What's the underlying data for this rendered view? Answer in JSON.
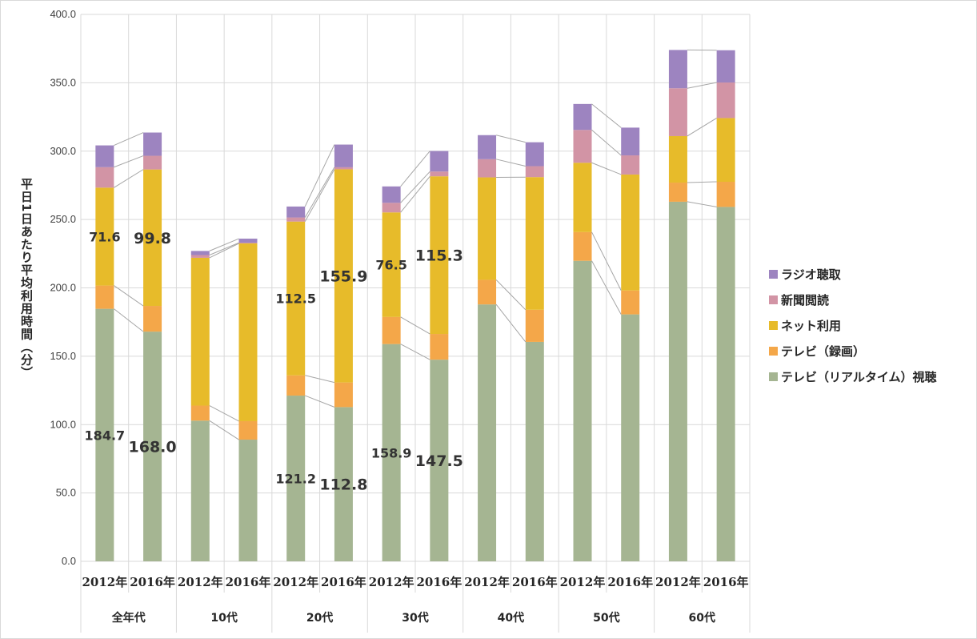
{
  "chart_data": {
    "type": "bar",
    "stacked": true,
    "ylabel": "平日1日あたり平均利用時間（分）",
    "ylim": [
      0,
      400
    ],
    "yticks": [
      "0.0",
      "50.0",
      "100.0",
      "150.0",
      "200.0",
      "250.0",
      "300.0",
      "350.0",
      "400.0"
    ],
    "groups": [
      "全年代",
      "10代",
      "20代",
      "30代",
      "40代",
      "50代",
      "60代"
    ],
    "categories": [
      "2012年",
      "2016年",
      "2012年",
      "2016年",
      "2012年",
      "2016年",
      "2012年",
      "2016年",
      "2012年",
      "2016年",
      "2012年",
      "2016年",
      "2012年",
      "2016年"
    ],
    "series": [
      {
        "name": "テレビ（リアルタイム）視聴",
        "color": "#a5b592",
        "values": [
          184.7,
          168.0,
          102.9,
          89.0,
          121.2,
          112.8,
          158.9,
          147.5,
          187.9,
          160.5,
          219.8,
          180.6,
          263.0,
          259.2
        ]
      },
      {
        "name": "テレビ（録画）",
        "color": "#f4a749",
        "values": [
          17.0,
          18.8,
          11.0,
          13.5,
          14.8,
          18.0,
          19.8,
          18.8,
          18.0,
          23.5,
          21.0,
          17.5,
          14.0,
          18.4
        ]
      },
      {
        "name": "ネット利用",
        "color": "#e7bb2a",
        "values": [
          71.6,
          99.8,
          108.1,
          130.0,
          112.5,
          155.9,
          76.5,
          115.3,
          74.9,
          97.0,
          50.7,
          84.8,
          34.0,
          46.6
        ]
      },
      {
        "name": "新聞閲読",
        "color": "#d294a5",
        "values": [
          15.0,
          10.0,
          2.0,
          0.5,
          3.0,
          1.5,
          7.0,
          3.5,
          13.3,
          8.0,
          24.0,
          14.0,
          35.0,
          26.0
        ]
      },
      {
        "name": "ラジオ聴取",
        "color": "#9d84c0",
        "values": [
          15.9,
          17.0,
          3.0,
          3.0,
          8.0,
          16.6,
          12.0,
          15.0,
          17.6,
          17.5,
          19.0,
          20.3,
          28.0,
          23.6
        ]
      }
    ],
    "data_labels": [
      {
        "text": "184.7",
        "bar": 0,
        "series": 0,
        "size": "small"
      },
      {
        "text": "168.0",
        "bar": 1,
        "series": 0,
        "size": "big"
      },
      {
        "text": "71.6",
        "bar": 0,
        "series": 2,
        "size": "small"
      },
      {
        "text": "99.8",
        "bar": 1,
        "series": 2,
        "size": "big"
      },
      {
        "text": "121.2",
        "bar": 4,
        "series": 0,
        "size": "small"
      },
      {
        "text": "112.8",
        "bar": 5,
        "series": 0,
        "size": "big"
      },
      {
        "text": "112.5",
        "bar": 4,
        "series": 2,
        "size": "small"
      },
      {
        "text": "155.9",
        "bar": 5,
        "series": 2,
        "size": "big"
      },
      {
        "text": "158.9",
        "bar": 6,
        "series": 0,
        "size": "small"
      },
      {
        "text": "147.5",
        "bar": 7,
        "series": 0,
        "size": "big"
      },
      {
        "text": "76.5",
        "bar": 6,
        "series": 2,
        "size": "small"
      },
      {
        "text": "115.3",
        "bar": 7,
        "series": 2,
        "size": "big"
      }
    ],
    "legend_position": "right",
    "grid": true,
    "series_lines": true
  }
}
